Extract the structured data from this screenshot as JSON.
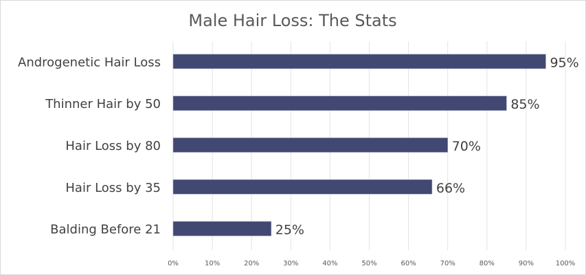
{
  "chart_data": {
    "type": "bar",
    "orientation": "horizontal",
    "title": "Male Hair Loss: The Stats",
    "xlabel": "",
    "ylabel": "",
    "categories": [
      "Androgenetic Hair Loss",
      "Thinner Hair by 50",
      "Hair Loss by 80",
      "Hair Loss by 35",
      "Balding Before 21"
    ],
    "values": [
      95,
      85,
      70,
      66,
      25
    ],
    "data_labels": [
      "95%",
      "85%",
      "70%",
      "66%",
      "25%"
    ],
    "xlim": [
      0,
      100
    ],
    "xticks": [
      "0%",
      "10%",
      "20%",
      "30%",
      "40%",
      "50%",
      "60%",
      "70%",
      "80%",
      "90%",
      "100%"
    ],
    "grid": "vertical",
    "legend": "none",
    "colors": {
      "bar": "#414871",
      "grid": "#e3e3e3",
      "text": "#404040"
    }
  }
}
